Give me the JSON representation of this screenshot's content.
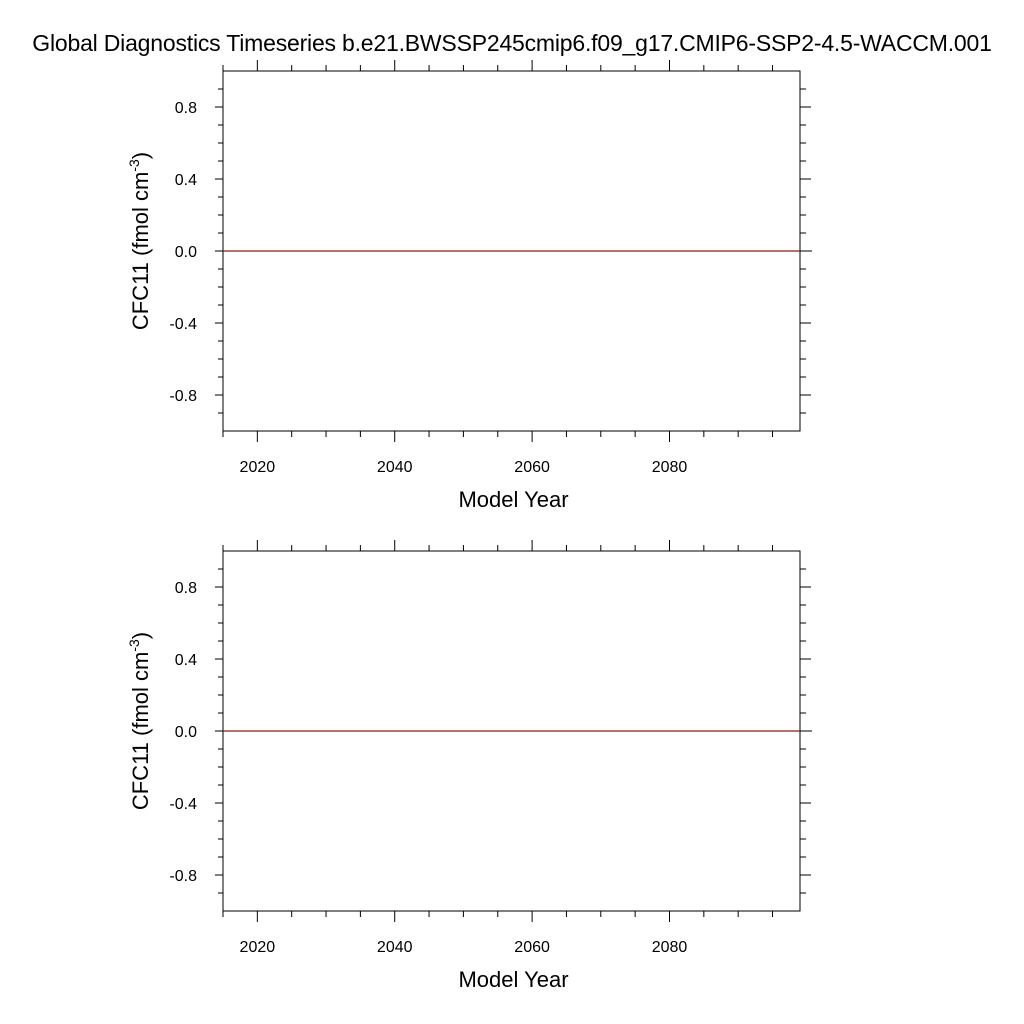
{
  "title": "Global Diagnostics Timeseries b.e21.BWSSP245cmip6.f09_g17.CMIP6-SSP2-4.5-WACCM.001",
  "colors": {
    "series_line": "#8b1a1a",
    "axis": "#000000",
    "background": "#ffffff"
  },
  "chart_data": [
    {
      "type": "line",
      "title": "",
      "xlabel": "Model Year",
      "ylabel": "CFC11  (fmol cm",
      "ylabel_superscript": "-3",
      "ylabel_close": ")",
      "xlim": [
        2015,
        2099
      ],
      "ylim": [
        -1.0,
        1.0
      ],
      "xticks": [
        2020,
        2040,
        2060,
        2080
      ],
      "xtick_labels": [
        "2020",
        "2040",
        "2060",
        "2080"
      ],
      "yticks": [
        0.8,
        0.4,
        0.0,
        -0.4,
        -0.8
      ],
      "ytick_labels": [
        "0.8",
        "0.4",
        "0.0",
        "-0.4",
        "-0.8"
      ],
      "grid": false,
      "series": [
        {
          "x": [
            2015,
            2099
          ],
          "values": [
            0.0,
            0.0
          ]
        }
      ]
    },
    {
      "type": "line",
      "title": "",
      "xlabel": "Model Year",
      "ylabel": "CFC11  (fmol cm",
      "ylabel_superscript": "-3",
      "ylabel_close": ")",
      "xlim": [
        2015,
        2099
      ],
      "ylim": [
        -1.0,
        1.0
      ],
      "xticks": [
        2020,
        2040,
        2060,
        2080
      ],
      "xtick_labels": [
        "2020",
        "2040",
        "2060",
        "2080"
      ],
      "yticks": [
        0.8,
        0.4,
        0.0,
        -0.4,
        -0.8
      ],
      "ytick_labels": [
        "0.8",
        "0.4",
        "0.0",
        "-0.4",
        "-0.8"
      ],
      "grid": false,
      "series": [
        {
          "x": [
            2015,
            2099
          ],
          "values": [
            0.0,
            0.0
          ]
        }
      ]
    }
  ]
}
